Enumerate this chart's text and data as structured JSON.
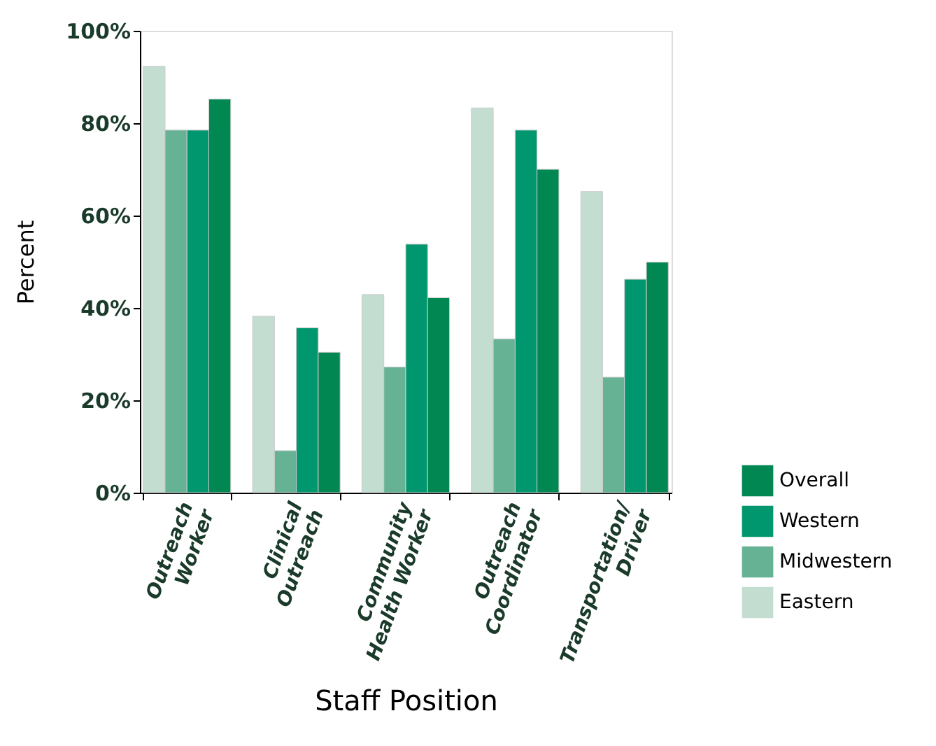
{
  "chart_data": {
    "type": "bar",
    "xlabel": "Staff Position",
    "ylabel": "Percent",
    "categories": [
      "Outreach\nWorker",
      "Clinical\nOutreach",
      "Community\nHealth Worker",
      "Outreach\nCoordinator",
      "Transportation/\nDriver"
    ],
    "series": [
      {
        "name": "Eastern",
        "color": "#c3ddd0",
        "values": [
          92.3,
          38.2,
          42.9,
          83.3,
          65.2
        ]
      },
      {
        "name": "Midwestern",
        "color": "#66b294",
        "values": [
          78.5,
          9.1,
          27.2,
          33.3,
          25.0
        ]
      },
      {
        "name": "Western",
        "color": "#00976e",
        "values": [
          78.5,
          35.7,
          53.8,
          78.5,
          46.2
        ]
      },
      {
        "name": "Overall",
        "color": "#008752",
        "values": [
          85.2,
          30.4,
          42.2,
          70.0,
          49.9
        ]
      }
    ],
    "ylim": [
      0,
      100
    ],
    "yticks": [
      {
        "value": 0,
        "label": "0%"
      },
      {
        "value": 20,
        "label": "20%"
      },
      {
        "value": 40,
        "label": "40%"
      },
      {
        "value": 60,
        "label": "60%"
      },
      {
        "value": 80,
        "label": "80%"
      },
      {
        "value": 100,
        "label": "100%"
      }
    ],
    "grid": false,
    "legend": "bottom right"
  }
}
